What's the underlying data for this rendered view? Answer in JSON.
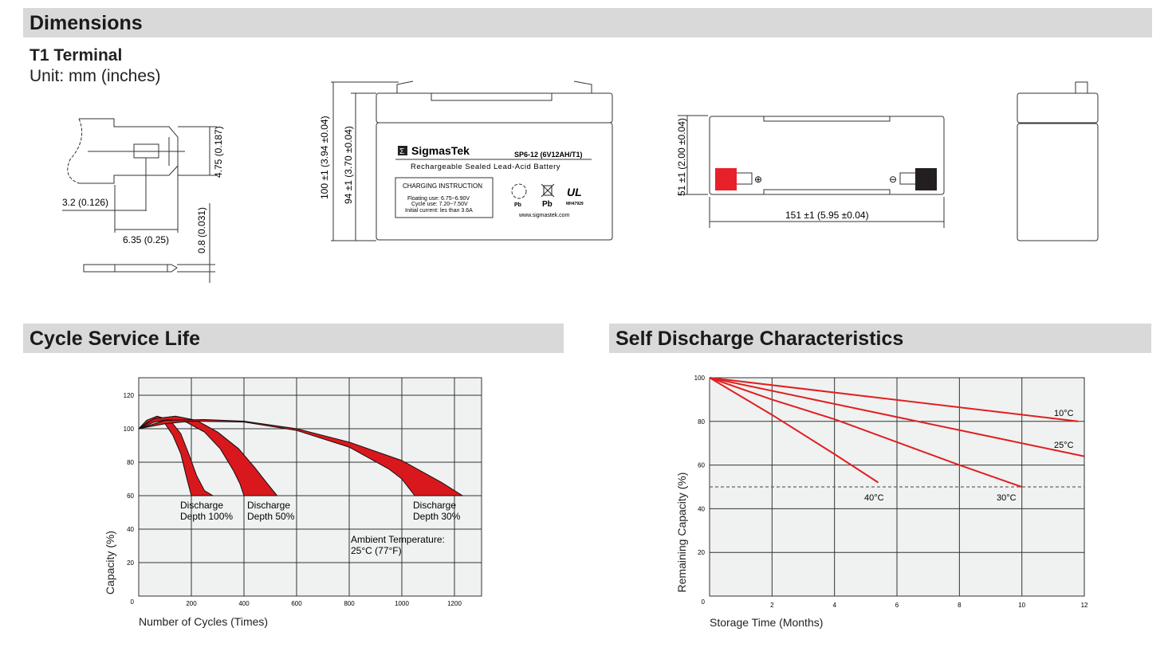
{
  "sections": {
    "dimensions": "Dimensions",
    "cycle_life": "Cycle Service Life",
    "self_discharge": "Self Discharge Characteristics"
  },
  "terminal": {
    "title": "T1 Terminal",
    "unit": "Unit: mm (inches)",
    "dim_height": "4.75 (0.187)",
    "dim_hole": "3.2 (0.126)",
    "dim_length": "6.35 (0.25)",
    "dim_thickness": "0.8 (0.031)"
  },
  "front_view": {
    "dim_total_height": "100 ±1 (3.94 ±0.04)",
    "dim_case_height": "94 ±1 (3.70 ±0.04)",
    "brand": "SigmasTek",
    "brand_logo": "Σ",
    "model": "SP6-12 (6V12AH/T1)",
    "subtitle": "Rechargeable Sealed Lead-Acid Battery",
    "charging_title": "CHARGING INSTRUCTION",
    "charging_lines": [
      "Floating use: 6.75~6.90V",
      "Cycle use: 7.20~7.50V",
      "Initial current: les than 3.6A"
    ],
    "recycle_label": "Pb",
    "bin_label": "Pb",
    "ul_code": "MH47929",
    "website": "www.sigmastek.com"
  },
  "top_view": {
    "dim_width": "51 ±1 (2.00 ±0.04)",
    "dim_length": "151 ±1 (5.95 ±0.04)",
    "positive_color": "#e8202a",
    "negative_color": "#231f20"
  },
  "chart_data": [
    {
      "type": "area",
      "title": "Cycle Service Life",
      "xlabel": "Number of Cycles (Times)",
      "ylabel": "Capacity (%)",
      "xlim": [
        0,
        1300
      ],
      "ylim": [
        0,
        130
      ],
      "xticks": [
        "200",
        "400",
        "600",
        "800",
        "1000",
        "1200"
      ],
      "yticks": [
        "0",
        "20",
        "40",
        "60",
        "80",
        "100",
        "120"
      ],
      "grid": true,
      "fill_color": "#d9181d",
      "annotations": [
        "Discharge\nDepth 100%",
        "Discharge\nDepth 50%",
        "Discharge\nDepth 30%",
        "Ambient Temperature:\n25°C (77°F)"
      ],
      "bands": [
        {
          "name": "Discharge Depth 100%",
          "upper": [
            [
              0,
              100
            ],
            [
              30,
              105
            ],
            [
              70,
              107.5
            ],
            [
              120,
              105
            ],
            [
              160,
              97
            ],
            [
              190,
              85
            ],
            [
              220,
              72
            ],
            [
              250,
              63
            ],
            [
              282,
              60
            ]
          ],
          "lower": [
            [
              0,
              100
            ],
            [
              30,
              103.5
            ],
            [
              60,
              105.5
            ],
            [
              100,
              103
            ],
            [
              130,
              96
            ],
            [
              160,
              85
            ],
            [
              180,
              72
            ],
            [
              200,
              60
            ]
          ]
        },
        {
          "name": "Discharge Depth 50%",
          "upper": [
            [
              0,
              100
            ],
            [
              60,
              106
            ],
            [
              140,
              107.5
            ],
            [
              220,
              105
            ],
            [
              300,
              98
            ],
            [
              380,
              88
            ],
            [
              440,
              77
            ],
            [
              490,
              67
            ],
            [
              526,
              60
            ]
          ],
          "lower": [
            [
              0,
              100
            ],
            [
              60,
              104
            ],
            [
              110,
              105.5
            ],
            [
              180,
              104
            ],
            [
              250,
              98
            ],
            [
              310,
              88
            ],
            [
              360,
              75
            ],
            [
              385,
              67
            ],
            [
              400,
              60
            ]
          ]
        },
        {
          "name": "Discharge Depth 30%",
          "upper": [
            [
              0,
              100
            ],
            [
              100,
              105
            ],
            [
              250,
              105.5
            ],
            [
              400,
              104.5
            ],
            [
              600,
              100
            ],
            [
              800,
              92
            ],
            [
              1000,
              81
            ],
            [
              1150,
              68
            ],
            [
              1231,
              60
            ]
          ],
          "lower": [
            [
              0,
              100
            ],
            [
              100,
              103
            ],
            [
              200,
              104.5
            ],
            [
              400,
              104
            ],
            [
              600,
              99
            ],
            [
              800,
              89
            ],
            [
              950,
              76
            ],
            [
              1000,
              70
            ],
            [
              1049,
              60
            ]
          ]
        }
      ]
    },
    {
      "type": "line",
      "title": "Self Discharge Characteristics",
      "xlabel": "Storage Time (Months)",
      "ylabel": "Remaining Capacity (%)",
      "xlim": [
        0,
        12
      ],
      "ylim": [
        0,
        100
      ],
      "xticks": [
        "2",
        "4",
        "6",
        "8",
        "10",
        "12"
      ],
      "yticks": [
        "0",
        "20",
        "40",
        "60",
        "80",
        "100"
      ],
      "grid": true,
      "reference_line": 50,
      "line_color": "#e02020",
      "series": [
        {
          "name": "10°C",
          "points": [
            [
              0,
              100
            ],
            [
              11.8,
              80
            ]
          ]
        },
        {
          "name": "25°C",
          "points": [
            [
              0,
              100
            ],
            [
              12,
              64
            ]
          ]
        },
        {
          "name": "30°C",
          "points": [
            [
              0,
              100
            ],
            [
              2,
              90
            ],
            [
              4,
              81
            ],
            [
              6,
              70.5
            ],
            [
              8,
              60
            ],
            [
              10,
              50
            ]
          ]
        },
        {
          "name": "40°C",
          "points": [
            [
              0,
              100
            ],
            [
              2,
              83
            ],
            [
              4,
              65
            ],
            [
              5.4,
              52
            ]
          ]
        }
      ]
    }
  ]
}
